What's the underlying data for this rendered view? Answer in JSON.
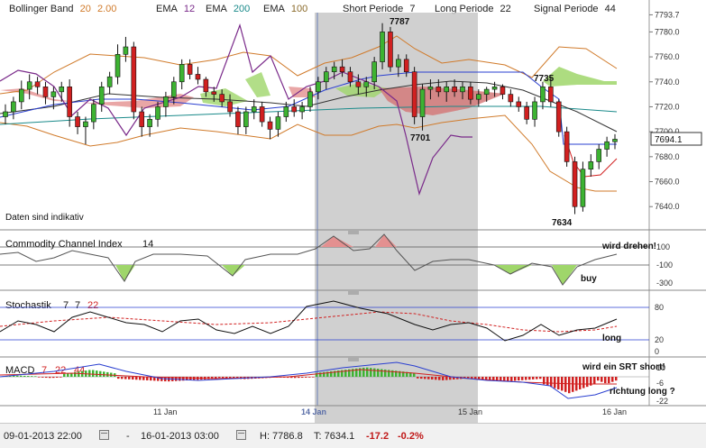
{
  "header": {
    "bb_label": "Bollinger Band",
    "bb_p1": "20",
    "bb_p2": "2.00",
    "ema1_label": "EMA",
    "ema1_val": "12",
    "ema2_label": "EMA",
    "ema2_val": "200",
    "ema3_label": "EMA",
    "ema3_val": "100",
    "short_label": "Short Periode",
    "short_val": "7",
    "long_label": "Long Periode",
    "long_val": "22",
    "signal_label": "Signal Periode",
    "signal_val": "44"
  },
  "price_panel": {
    "note": "Daten sind indikativ",
    "current_price": "7694.1",
    "annotations": [
      "7787",
      "7735",
      "7701",
      "7634"
    ],
    "y_ticks": [
      "7793.7",
      "7780.0",
      "7760.0",
      "7740.0",
      "7720.0",
      "7700.0",
      "7680.0",
      "7660.0",
      "7640.0"
    ]
  },
  "cci_panel": {
    "label": "Commodity Channel Index",
    "period": "14",
    "y_ticks": [
      "100",
      "-100",
      "-300"
    ],
    "notes": [
      "wird drehen!",
      "buy"
    ]
  },
  "stoch_panel": {
    "label": "Stochastik",
    "p1": "7",
    "p2": "7",
    "p3": "22",
    "y_ticks": [
      "80",
      "20",
      "0"
    ],
    "notes": [
      "long"
    ]
  },
  "macd_panel": {
    "label": "MACD",
    "p1": "7",
    "p2": "22",
    "p3": "44",
    "y_ticks": [
      "10",
      "-6",
      "-22"
    ],
    "notes": [
      "wird ein SRT short!",
      "richtung long ?"
    ]
  },
  "x_axis": {
    "labels": [
      "11 Jan",
      "14 Jan",
      "15 Jan",
      "16 Jan"
    ]
  },
  "footer": {
    "from": "09-01-2013 22:00",
    "dash": "-",
    "to": "16-01-2013 03:00",
    "high": "H: 7786.8",
    "low": "T: 7634.1",
    "change": "-17.2",
    "change_pct": "-0.2%"
  },
  "colors": {
    "up_candle": "#3db332",
    "down_candle": "#d12020",
    "bollinger": "#d07a2a",
    "ema12": "#000000",
    "ema200": "#1a8a8a",
    "ema100": "#7a2a8a",
    "highlight": "#c8c8c8"
  },
  "chart_data": {
    "type": "candlestick",
    "title": "",
    "ylim": [
      7625,
      7794
    ],
    "candles": [
      [
        7712,
        7722,
        7706,
        7716
      ],
      [
        7716,
        7728,
        7710,
        7724
      ],
      [
        7724,
        7741,
        7718,
        7734
      ],
      [
        7734,
        7746,
        7726,
        7740
      ],
      [
        7740,
        7744,
        7730,
        7736
      ],
      [
        7736,
        7740,
        7722,
        7728
      ],
      [
        7728,
        7736,
        7718,
        7732
      ],
      [
        7732,
        7740,
        7724,
        7736
      ],
      [
        7736,
        7742,
        7704,
        7712
      ],
      [
        7712,
        7716,
        7698,
        7704
      ],
      [
        7704,
        7712,
        7690,
        7708
      ],
      [
        7708,
        7726,
        7702,
        7722
      ],
      [
        7722,
        7740,
        7716,
        7736
      ],
      [
        7736,
        7748,
        7730,
        7744
      ],
      [
        7744,
        7770,
        7738,
        7762
      ],
      [
        7762,
        7776,
        7756,
        7768
      ],
      [
        7768,
        7772,
        7710,
        7716
      ],
      [
        7716,
        7720,
        7696,
        7704
      ],
      [
        7704,
        7714,
        7696,
        7710
      ],
      [
        7710,
        7724,
        7704,
        7720
      ],
      [
        7720,
        7732,
        7712,
        7728
      ],
      [
        7728,
        7744,
        7722,
        7740
      ],
      [
        7740,
        7758,
        7734,
        7754
      ],
      [
        7754,
        7758,
        7742,
        7746
      ],
      [
        7746,
        7752,
        7738,
        7742
      ],
      [
        7742,
        7744,
        7728,
        7732
      ],
      [
        7732,
        7736,
        7724,
        7730
      ],
      [
        7730,
        7734,
        7720,
        7724
      ],
      [
        7724,
        7730,
        7712,
        7716
      ],
      [
        7716,
        7720,
        7698,
        7704
      ],
      [
        7704,
        7720,
        7698,
        7716
      ],
      [
        7716,
        7726,
        7710,
        7720
      ],
      [
        7720,
        7724,
        7704,
        7708
      ],
      [
        7708,
        7712,
        7694,
        7702
      ],
      [
        7702,
        7716,
        7696,
        7712
      ],
      [
        7712,
        7724,
        7708,
        7720
      ],
      [
        7720,
        7726,
        7712,
        7716
      ],
      [
        7716,
        7724,
        7710,
        7720
      ],
      [
        7720,
        7736,
        7716,
        7732
      ],
      [
        7732,
        7744,
        7726,
        7740
      ],
      [
        7740,
        7752,
        7734,
        7748
      ],
      [
        7748,
        7756,
        7742,
        7752
      ],
      [
        7752,
        7758,
        7744,
        7748
      ],
      [
        7748,
        7752,
        7736,
        7740
      ],
      [
        7740,
        7746,
        7730,
        7736
      ],
      [
        7736,
        7744,
        7728,
        7740
      ],
      [
        7740,
        7760,
        7734,
        7756
      ],
      [
        7756,
        7787,
        7750,
        7780
      ],
      [
        7780,
        7784,
        7748,
        7752
      ],
      [
        7752,
        7762,
        7744,
        7758
      ],
      [
        7758,
        7762,
        7744,
        7748
      ],
      [
        7748,
        7752,
        7706,
        7712
      ],
      [
        7712,
        7738,
        7701,
        7734
      ],
      [
        7734,
        7742,
        7726,
        7736
      ],
      [
        7736,
        7742,
        7728,
        7732
      ],
      [
        7732,
        7740,
        7724,
        7736
      ],
      [
        7736,
        7742,
        7728,
        7732
      ],
      [
        7732,
        7740,
        7726,
        7736
      ],
      [
        7736,
        7740,
        7722,
        7726
      ],
      [
        7726,
        7734,
        7720,
        7730
      ],
      [
        7730,
        7736,
        7724,
        7734
      ],
      [
        7734,
        7740,
        7728,
        7736
      ],
      [
        7736,
        7738,
        7726,
        7730
      ],
      [
        7730,
        7734,
        7720,
        7724
      ],
      [
        7724,
        7728,
        7716,
        7720
      ],
      [
        7720,
        7724,
        7706,
        7710
      ],
      [
        7710,
        7728,
        7704,
        7724
      ],
      [
        7724,
        7740,
        7718,
        7736
      ],
      [
        7736,
        7744,
        7720,
        7724
      ],
      [
        7724,
        7726,
        7696,
        7700
      ],
      [
        7700,
        7704,
        7672,
        7676
      ],
      [
        7676,
        7680,
        7634,
        7640
      ],
      [
        7640,
        7676,
        7636,
        7670
      ],
      [
        7670,
        7682,
        7664,
        7676
      ],
      [
        7676,
        7690,
        7670,
        7686
      ],
      [
        7686,
        7696,
        7680,
        7692
      ],
      [
        7692,
        7698,
        7686,
        7694
      ]
    ]
  }
}
